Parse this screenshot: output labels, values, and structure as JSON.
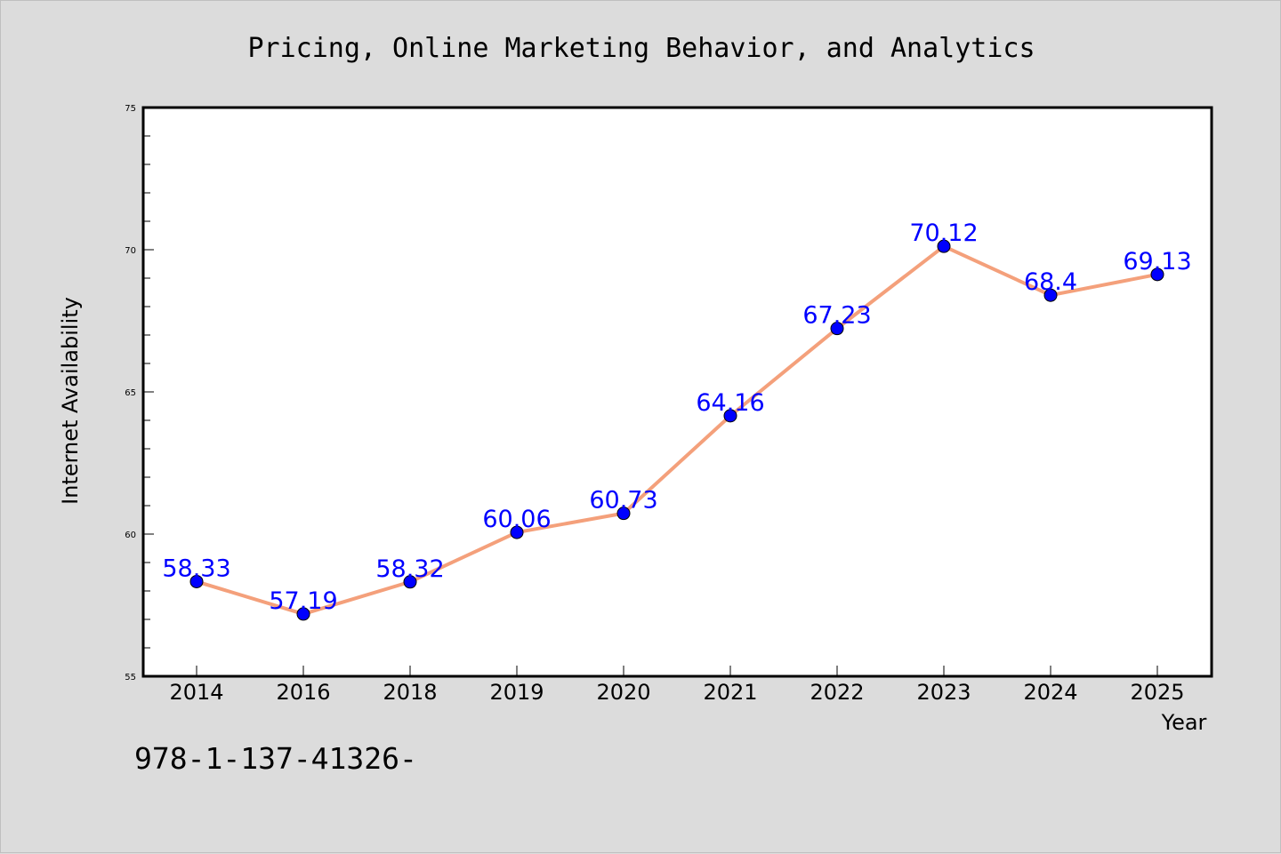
{
  "chart_data": {
    "type": "line",
    "title": "Pricing, Online Marketing Behavior, and Analytics",
    "xlabel": "Year",
    "ylabel": "Internet Availability",
    "categories": [
      "2014",
      "2016",
      "2018",
      "2019",
      "2020",
      "2021",
      "2022",
      "2023",
      "2024",
      "2025"
    ],
    "series": [
      {
        "values": [
          58.33,
          57.19,
          58.32,
          60.06,
          60.73,
          64.16,
          67.23,
          70.12,
          68.4,
          69.13
        ],
        "labels": [
          "58.33",
          "57.19",
          "58.32",
          "60.06",
          "60.73",
          "64.16",
          "67.23",
          "70.12",
          "68.4",
          "69.13"
        ]
      }
    ],
    "ylim": [
      55,
      75
    ],
    "yticks": [
      55,
      60,
      65,
      70,
      75
    ],
    "grid": false,
    "legend": "none"
  },
  "footnote": "978-1-137-41326-",
  "colors": {
    "background": "#dcdcdc",
    "plot_area": "#ffffff",
    "line": "#f4a07b",
    "marker": "#0000ff",
    "data_label": "#0000ff"
  }
}
